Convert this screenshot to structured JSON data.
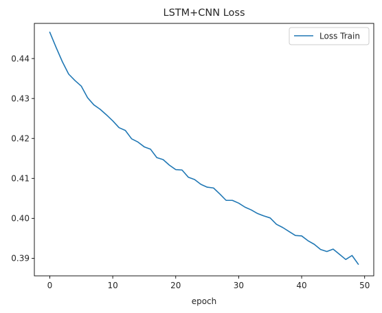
{
  "chart_data": {
    "type": "line",
    "title": "LSTM+CNN Loss",
    "xlabel": "epoch",
    "ylabel": "",
    "xlim": [
      -2.45,
      51.45
    ],
    "ylim": [
      0.3856,
      0.4488
    ],
    "xticks": [
      0,
      10,
      20,
      30,
      40,
      50
    ],
    "xtick_labels": [
      "0",
      "10",
      "20",
      "30",
      "40",
      "50"
    ],
    "yticks": [
      0.39,
      0.4,
      0.41,
      0.42,
      0.43,
      0.44
    ],
    "ytick_labels": [
      "0.39",
      "0.40",
      "0.41",
      "0.42",
      "0.43",
      "0.44"
    ],
    "grid": false,
    "legend": "top-right",
    "series": [
      {
        "name": "Loss Train",
        "color": "#1f77b4",
        "x": [
          0,
          1,
          2,
          3,
          4,
          5,
          6,
          7,
          8,
          9,
          10,
          11,
          12,
          13,
          14,
          15,
          16,
          17,
          18,
          19,
          20,
          21,
          22,
          23,
          24,
          25,
          26,
          27,
          28,
          29,
          30,
          31,
          32,
          33,
          34,
          35,
          36,
          37,
          38,
          39,
          40,
          41,
          42,
          43,
          44,
          45,
          46,
          47,
          48,
          49
        ],
        "values": [
          0.4466,
          0.4428,
          0.4392,
          0.4361,
          0.4345,
          0.4331,
          0.4302,
          0.4284,
          0.4273,
          0.4259,
          0.4244,
          0.4227,
          0.422,
          0.4199,
          0.4191,
          0.4179,
          0.4173,
          0.4152,
          0.4147,
          0.4133,
          0.4122,
          0.4121,
          0.4103,
          0.4097,
          0.4085,
          0.4078,
          0.4076,
          0.4061,
          0.4045,
          0.4045,
          0.4038,
          0.4028,
          0.4021,
          0.4012,
          0.4006,
          0.4001,
          0.3985,
          0.3977,
          0.3967,
          0.3957,
          0.3956,
          0.3944,
          0.3935,
          0.3922,
          0.3917,
          0.3923,
          0.391,
          0.3897,
          0.3907,
          0.3885
        ]
      }
    ]
  }
}
